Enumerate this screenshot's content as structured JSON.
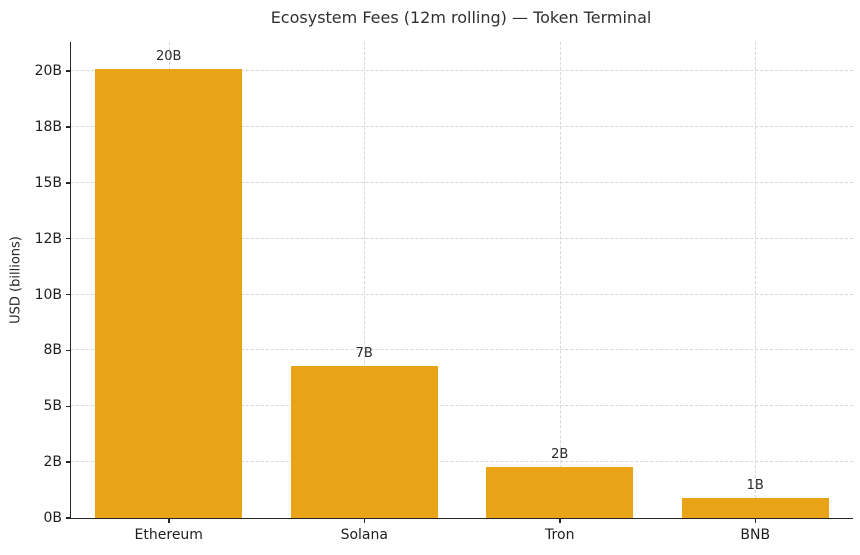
{
  "chart_data": {
    "type": "bar",
    "title": "Ecosystem Fees (12m rolling) — Token Terminal",
    "xlabel": "",
    "ylabel": "USD (billions)",
    "categories": [
      "Ethereum",
      "Solana",
      "Tron",
      "BNB"
    ],
    "values": [
      20.1,
      6.8,
      2.3,
      0.9
    ],
    "bar_labels": [
      "20B",
      "7B",
      "2B",
      "1B"
    ],
    "yticks": {
      "values": [
        0,
        2.5,
        5,
        7.5,
        10,
        12.5,
        15,
        17.5,
        20
      ],
      "labels": [
        "0B",
        "2B",
        "5B",
        "8B",
        "10B",
        "12B",
        "15B",
        "18B",
        "20B"
      ]
    },
    "ylim": [
      0,
      21.3
    ],
    "grid": true,
    "grid_style": "dashed",
    "legend": false,
    "bar_color": "#E8A317"
  },
  "colors": {
    "bar": "#E8A317",
    "grid": "#d7d7d7",
    "axis": "#262626",
    "text": "#262626"
  }
}
